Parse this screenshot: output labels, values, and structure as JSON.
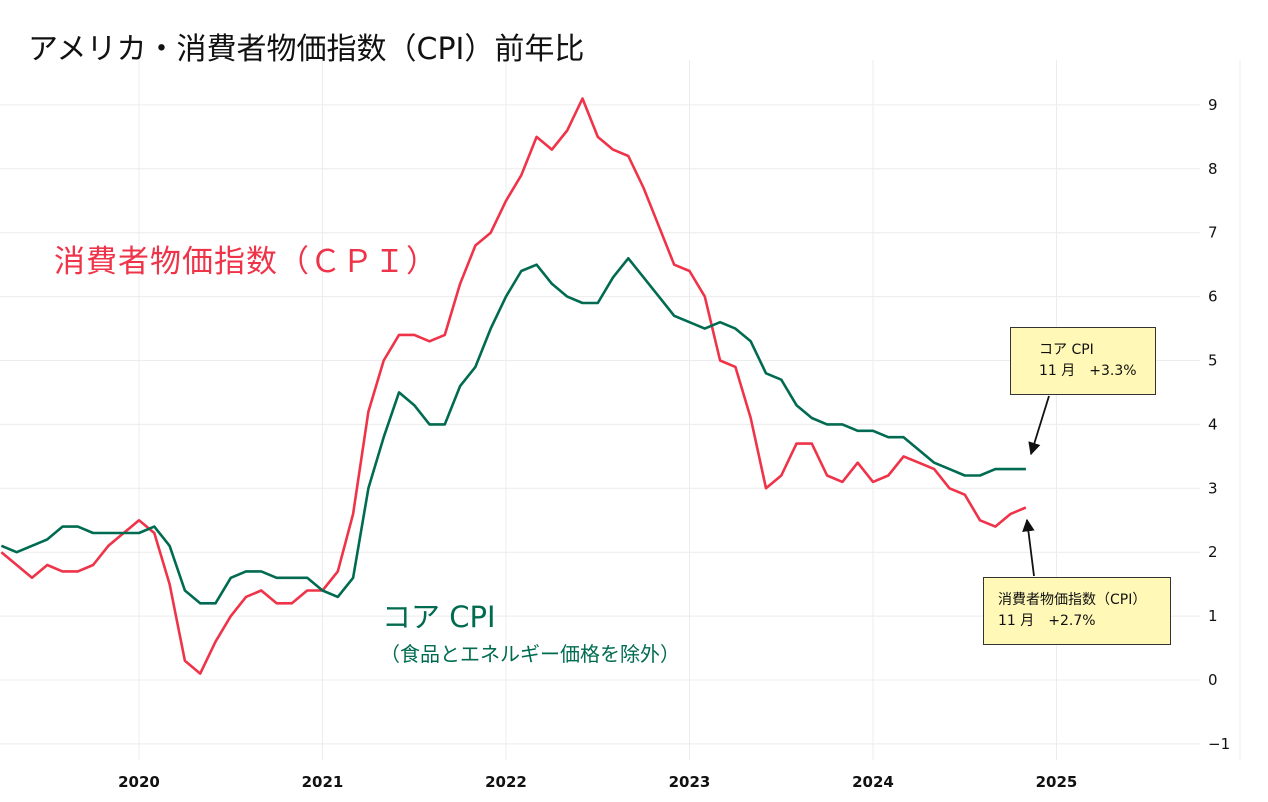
{
  "title": "アメリカ・消費者物価指数（CPI）前年比",
  "labels": {
    "cpi": "消費者物価指数（ＣＰＩ）",
    "core": "コア CPI",
    "core_sub": "（食品とエネルギー価格を除外）"
  },
  "annotations": {
    "core": {
      "line1": "コア CPI",
      "line2": "11 月　+3.3%"
    },
    "cpi": {
      "line1": "消費者物価指数（CPI）",
      "line2": "11 月　+2.7%"
    }
  },
  "chart_data": {
    "type": "line",
    "title": "アメリカ・消費者物価指数（CPI）前年比",
    "x_start": "2019-04",
    "x_frequency": "monthly",
    "x_ticks": [
      "2020",
      "2021",
      "2022",
      "2023",
      "2024",
      "2025"
    ],
    "y_ticks": [
      -1,
      0,
      1,
      2,
      3,
      4,
      5,
      6,
      7,
      8,
      9
    ],
    "ylim": [
      -1,
      9
    ],
    "grid": true,
    "y_axis_side": "right",
    "colors": {
      "cpi": "#ef3349",
      "core": "#006b50"
    },
    "series": [
      {
        "name": "消費者物価指数（ＣＰＩ）",
        "key": "cpi",
        "values": [
          2.0,
          1.8,
          1.6,
          1.8,
          1.7,
          1.7,
          1.8,
          2.1,
          2.3,
          2.5,
          2.3,
          1.5,
          0.3,
          0.1,
          0.6,
          1.0,
          1.3,
          1.4,
          1.2,
          1.2,
          1.4,
          1.4,
          1.7,
          2.6,
          4.2,
          5.0,
          5.4,
          5.4,
          5.3,
          5.4,
          6.2,
          6.8,
          7.0,
          7.5,
          7.9,
          8.5,
          8.3,
          8.6,
          9.1,
          8.5,
          8.3,
          8.2,
          7.7,
          7.1,
          6.5,
          6.4,
          6.0,
          5.0,
          4.9,
          4.1,
          3.0,
          3.2,
          3.7,
          3.7,
          3.2,
          3.1,
          3.4,
          3.1,
          3.2,
          3.5,
          3.4,
          3.3,
          3.0,
          2.9,
          2.5,
          2.4,
          2.6,
          2.7
        ]
      },
      {
        "name": "コア CPI",
        "key": "core",
        "values": [
          2.1,
          2.0,
          2.1,
          2.2,
          2.4,
          2.4,
          2.3,
          2.3,
          2.3,
          2.3,
          2.4,
          2.1,
          1.4,
          1.2,
          1.2,
          1.6,
          1.7,
          1.7,
          1.6,
          1.6,
          1.6,
          1.4,
          1.3,
          1.6,
          3.0,
          3.8,
          4.5,
          4.3,
          4.0,
          4.0,
          4.6,
          4.9,
          5.5,
          6.0,
          6.4,
          6.5,
          6.2,
          6.0,
          5.9,
          5.9,
          6.3,
          6.6,
          6.3,
          6.0,
          5.7,
          5.6,
          5.5,
          5.6,
          5.5,
          5.3,
          4.8,
          4.7,
          4.3,
          4.1,
          4.0,
          4.0,
          3.9,
          3.9,
          3.8,
          3.8,
          3.6,
          3.4,
          3.3,
          3.2,
          3.2,
          3.3,
          3.3,
          3.3
        ]
      }
    ]
  }
}
